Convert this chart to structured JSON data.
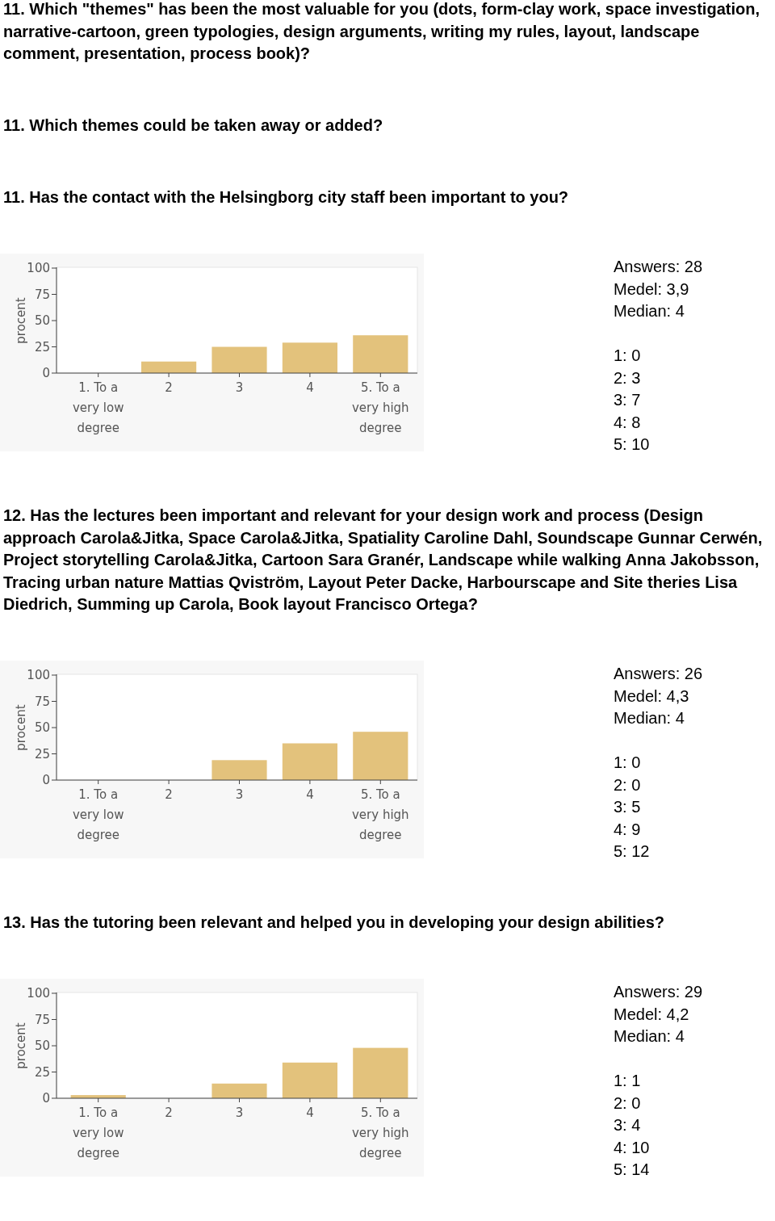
{
  "chart_data": [
    {
      "type": "other",
      "annotations": [
        "11. Which \"themes\" has been the most valuable for you (dots, form-clay work, space investigation, narrative-cartoon, green typologies, design arguments, writing my rules, layout, landscape comment, presentation, process book)?",
        "11. Which themes could be taken away or added?"
      ]
    },
    {
      "type": "bar",
      "title": "11. Has the contact with the Helsingborg city staff been important to you?",
      "categories": [
        "1. To a very low degree",
        "2",
        "3",
        "4",
        "5. To a very high degree"
      ],
      "values": [
        0,
        11,
        25,
        29,
        36
      ],
      "color": "#e3c27c",
      "ylabel": "procent",
      "ylim": [
        0,
        100
      ],
      "yticks": [
        0,
        25,
        50,
        75,
        100
      ],
      "grid": false,
      "annotations": [
        "Answers: 28",
        "Medel: 3,9",
        "Median: 4",
        "1: 0",
        "2: 3",
        "3: 7",
        "4: 8",
        "5: 10"
      ]
    },
    {
      "type": "bar",
      "title": "12. Has the lectures been important and relevant for your design work and process (Design approach Carola&Jitka, Space Carola&Jitka, Spatiality Caroline Dahl, Soundscape Gunnar Cerwén, Project storytelling Carola&Jitka, Cartoon Sara Granér, Landscape while walking Anna Jakobsson, Tracing urban nature Mattias Qviström, Layout Peter Dacke, Harbourscape and Site theries Lisa Diedrich, Summing up Carola, Book layout Francisco Ortega?",
      "categories": [
        "1. To a very low degree",
        "2",
        "3",
        "4",
        "5. To a very high degree"
      ],
      "values": [
        0,
        0,
        19,
        35,
        46
      ],
      "color": "#e3c27c",
      "ylabel": "procent",
      "ylim": [
        0,
        100
      ],
      "yticks": [
        0,
        25,
        50,
        75,
        100
      ],
      "grid": false,
      "annotations": [
        "Answers: 26",
        "Medel: 4,3",
        "Median: 4",
        "1: 0",
        "2: 0",
        "3: 5",
        "4: 9",
        "5: 12"
      ]
    },
    {
      "type": "bar",
      "title": "13. Has the tutoring been relevant and helped you in developing your design abilities?",
      "categories": [
        "1. To a very low degree",
        "2",
        "3",
        "4",
        "5. To a very high degree"
      ],
      "values": [
        3,
        0,
        14,
        34,
        48
      ],
      "color": "#e3c27c",
      "ylabel": "procent",
      "ylim": [
        0,
        100
      ],
      "yticks": [
        0,
        25,
        50,
        75,
        100
      ],
      "grid": false,
      "annotations": [
        "Answers: 29",
        "Medel: 4,2",
        "Median: 4",
        "1: 1",
        "2: 0",
        "3: 4",
        "4: 10",
        "5: 14"
      ]
    }
  ]
}
